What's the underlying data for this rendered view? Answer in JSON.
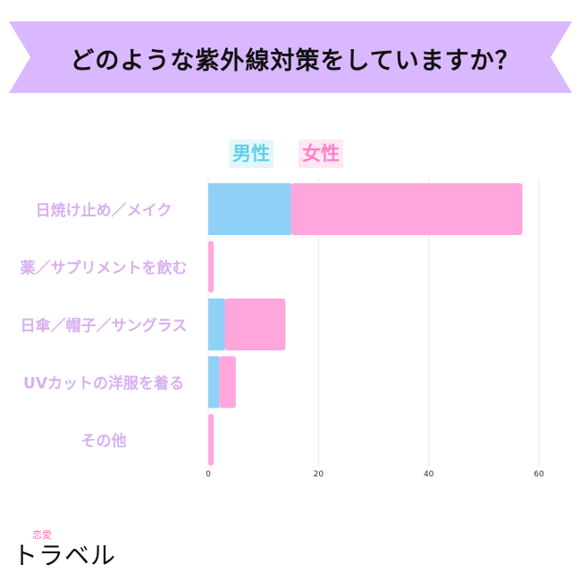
{
  "title": "どのような紫外線対策をしていますか？",
  "colors": {
    "banner": "#d9b8ff",
    "male": "#8fd0f7",
    "female": "#ffa6dc",
    "category_text": "#d8b0f0",
    "grid": "#e8e8e8"
  },
  "chart_data": {
    "type": "bar",
    "orientation": "horizontal",
    "stacked": true,
    "categories": [
      "日焼け止め／メイク",
      "薬／サプリメントを飲む",
      "日傘／帽子／サングラス",
      "UVカットの洋服を着る",
      "その他"
    ],
    "series": [
      {
        "name": "男性",
        "values": [
          15,
          0,
          3,
          2,
          0
        ]
      },
      {
        "name": "女性",
        "values": [
          42,
          1,
          11,
          3,
          1
        ]
      }
    ],
    "xlim": [
      0,
      60
    ],
    "xticks": [
      0,
      20,
      40,
      60
    ],
    "grid": true,
    "legend": "top-center"
  },
  "logo": {
    "sub": "恋愛",
    "main": "トラベル"
  }
}
